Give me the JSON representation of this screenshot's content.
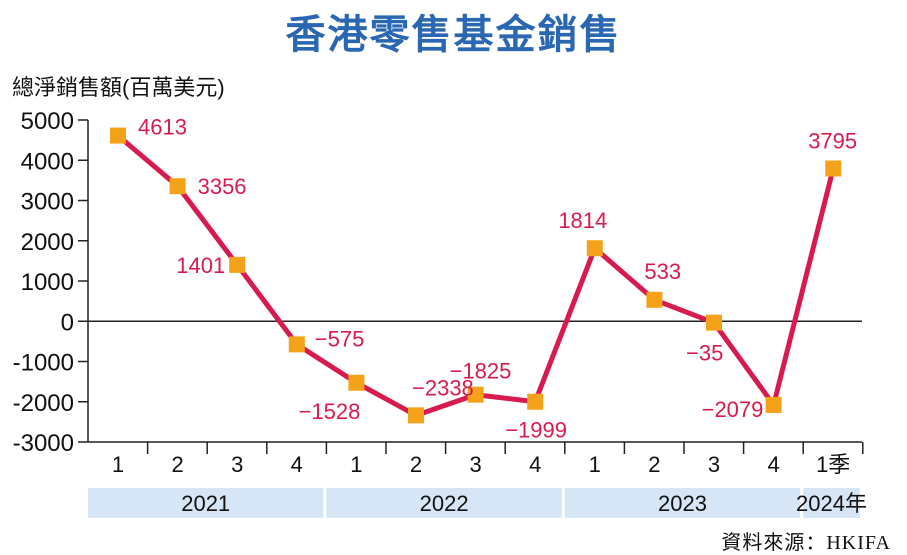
{
  "chart_data": {
    "type": "line",
    "title": "香港零售基金銷售",
    "ylabel": "總淨銷售額(百萬美元)",
    "ylim": [
      -3000,
      5000
    ],
    "yticks": [
      "5000",
      "4000",
      "3000",
      "2000",
      "1000",
      "0",
      "-1000",
      "-2000",
      "-3000"
    ],
    "categories": [
      "1",
      "2",
      "3",
      "4",
      "1",
      "2",
      "3",
      "4",
      "1",
      "2",
      "3",
      "4",
      "1季"
    ],
    "year_groups": [
      {
        "label": "2021",
        "span": 4
      },
      {
        "label": "2022",
        "span": 4
      },
      {
        "label": "2023",
        "span": 4
      },
      {
        "label": "2024年",
        "span": 1
      }
    ],
    "series": [
      {
        "values": [
          4613,
          3356,
          1401,
          -575,
          -1528,
          -2338,
          -1825,
          -1999,
          1814,
          533,
          -35,
          -2079,
          3795
        ],
        "labels": [
          "4613",
          "3356",
          "1401",
          "−575",
          "−1528",
          "−2338",
          "−1825",
          "−1999",
          "1814",
          "533",
          "−35",
          "−2079",
          "3795"
        ]
      }
    ],
    "colors": {
      "line": "#d81b4f",
      "marker": "#f5a21b",
      "label": "#d81b4f",
      "title": "#2a67b2",
      "year_band": "#d7e6f6"
    },
    "grid": false
  },
  "source": "資料來源：HKIFA"
}
